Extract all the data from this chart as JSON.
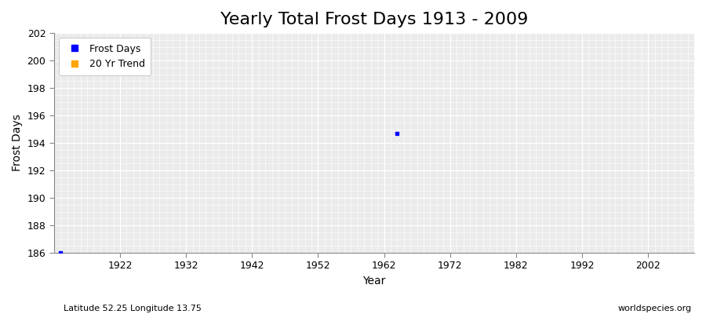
{
  "title": "Yearly Total Frost Days 1913 - 2009",
  "xlabel": "Year",
  "ylabel": "Frost Days",
  "xlim": [
    1912,
    2009
  ],
  "ylim": [
    186,
    202
  ],
  "yticks": [
    186,
    188,
    190,
    192,
    194,
    196,
    198,
    200,
    202
  ],
  "xticks": [
    1922,
    1932,
    1942,
    1952,
    1962,
    1972,
    1982,
    1992,
    2002
  ],
  "data_points": [
    {
      "year": 1913,
      "value": 186
    },
    {
      "year": 1964,
      "value": 194.7
    }
  ],
  "point_color": "#0000ff",
  "trend_color": "#ffa500",
  "fig_bg_color": "#ffffff",
  "plot_bg_color": "#ebebeb",
  "grid_minor_color": "#ffffff",
  "grid_major_color": "#ffffff",
  "subtitle_left": "Latitude 52.25 Longitude 13.75",
  "subtitle_right": "worldspecies.org",
  "legend_labels": [
    "Frost Days",
    "20 Yr Trend"
  ],
  "legend_colors": [
    "#0000ff",
    "#ffa500"
  ],
  "title_fontsize": 16,
  "axis_fontsize": 9,
  "label_fontsize": 10
}
